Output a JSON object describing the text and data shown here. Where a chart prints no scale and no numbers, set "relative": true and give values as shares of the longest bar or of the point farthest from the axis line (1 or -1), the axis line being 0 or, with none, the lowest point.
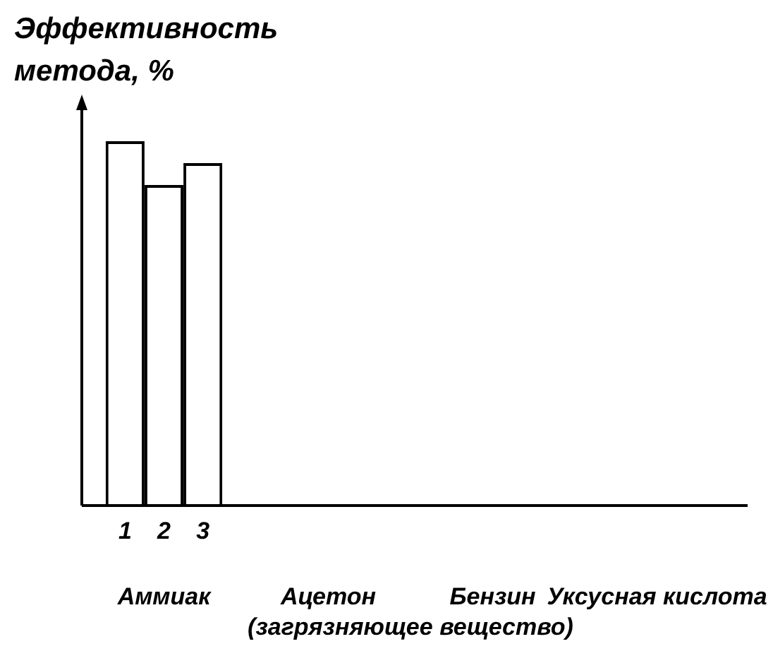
{
  "chart_data": {
    "type": "bar",
    "relative": true,
    "xlabel": "(загрязняющее вещество)",
    "ylabel": "Эффективность метода, %",
    "categories": [
      "Аммиак",
      "Ацетон",
      "Бензин",
      "Уксусная кислота"
    ],
    "series": [
      {
        "name": "1",
        "color": "#ffffff",
        "values": [
          1,
          null,
          null,
          null
        ]
      },
      {
        "name": "2",
        "color": "#ffffff",
        "values": [
          0.88,
          null,
          null,
          null
        ]
      },
      {
        "name": "3",
        "color": "#ffffff",
        "values": [
          0.94,
          null,
          null,
          null
        ]
      }
    ]
  }
}
